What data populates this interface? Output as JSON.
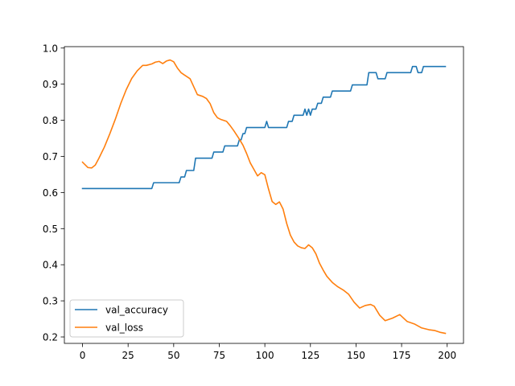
{
  "chart_data": {
    "type": "line",
    "title": "",
    "xlabel": "",
    "ylabel": "",
    "xlim": [
      -9.95,
      208.95
    ],
    "ylim": [
      0.1822,
      1.0039
    ],
    "xticks": [
      0,
      25,
      50,
      75,
      100,
      125,
      150,
      175,
      200
    ],
    "xtick_labels": [
      "0",
      "25",
      "50",
      "75",
      "100",
      "125",
      "150",
      "175",
      "200"
    ],
    "yticks": [
      0.2,
      0.3,
      0.4,
      0.5,
      0.6,
      0.7,
      0.8,
      0.9,
      1.0
    ],
    "ytick_labels": [
      "0.2",
      "0.3",
      "0.4",
      "0.5",
      "0.6",
      "0.7",
      "0.8",
      "0.9",
      "1.0"
    ],
    "grid": false,
    "legend_position": "lower-left",
    "series": [
      {
        "name": "val_accuracy",
        "color": "#1f77b4",
        "x": [
          0,
          38,
          39,
          53,
          54,
          56,
          57,
          61,
          62,
          71,
          72,
          77,
          78,
          85,
          86,
          87,
          88,
          89,
          90,
          100,
          101,
          102,
          103,
          112,
          113,
          115,
          116,
          121,
          122,
          123,
          124,
          125,
          126,
          128,
          129,
          131,
          132,
          136,
          137,
          147,
          148,
          156,
          157,
          161,
          162,
          166,
          167,
          180,
          181,
          183,
          184,
          186,
          187,
          199
        ],
        "y": [
          0.611,
          0.611,
          0.627,
          0.627,
          0.643,
          0.643,
          0.661,
          0.661,
          0.695,
          0.695,
          0.712,
          0.712,
          0.729,
          0.729,
          0.746,
          0.746,
          0.763,
          0.763,
          0.78,
          0.78,
          0.797,
          0.78,
          0.78,
          0.78,
          0.797,
          0.797,
          0.814,
          0.814,
          0.831,
          0.814,
          0.831,
          0.814,
          0.831,
          0.831,
          0.847,
          0.847,
          0.864,
          0.864,
          0.881,
          0.881,
          0.898,
          0.898,
          0.932,
          0.932,
          0.915,
          0.915,
          0.932,
          0.932,
          0.949,
          0.949,
          0.932,
          0.932,
          0.949,
          0.949
        ]
      },
      {
        "name": "val_loss",
        "color": "#ff7f0e",
        "x": [
          0,
          3,
          5,
          7,
          9,
          12,
          15,
          18,
          21,
          24,
          27,
          30,
          33,
          35,
          38,
          40,
          42,
          44,
          46,
          48,
          50,
          52,
          54,
          56,
          59,
          61,
          63,
          66,
          68,
          70,
          72,
          74,
          76,
          79,
          81,
          83,
          86,
          88,
          90,
          92,
          94,
          96,
          98,
          100,
          102,
          104,
          106,
          108,
          110,
          112,
          114,
          116,
          118,
          120,
          122,
          124,
          126,
          128,
          130,
          132,
          134,
          137,
          140,
          143,
          146,
          149,
          152,
          155,
          158,
          160,
          163,
          166,
          170,
          174,
          178,
          182,
          186,
          190,
          193,
          196,
          199
        ],
        "y": [
          0.684,
          0.669,
          0.668,
          0.676,
          0.695,
          0.726,
          0.763,
          0.803,
          0.847,
          0.885,
          0.916,
          0.937,
          0.952,
          0.952,
          0.956,
          0.961,
          0.963,
          0.957,
          0.964,
          0.967,
          0.962,
          0.945,
          0.932,
          0.925,
          0.915,
          0.893,
          0.871,
          0.866,
          0.86,
          0.846,
          0.821,
          0.807,
          0.802,
          0.797,
          0.785,
          0.771,
          0.748,
          0.731,
          0.708,
          0.682,
          0.664,
          0.646,
          0.655,
          0.649,
          0.61,
          0.575,
          0.567,
          0.574,
          0.554,
          0.514,
          0.482,
          0.463,
          0.452,
          0.447,
          0.445,
          0.455,
          0.447,
          0.43,
          0.404,
          0.385,
          0.368,
          0.351,
          0.339,
          0.33,
          0.318,
          0.296,
          0.28,
          0.287,
          0.29,
          0.285,
          0.26,
          0.245,
          0.252,
          0.262,
          0.243,
          0.236,
          0.225,
          0.22,
          0.218,
          0.213,
          0.21
        ]
      }
    ]
  }
}
